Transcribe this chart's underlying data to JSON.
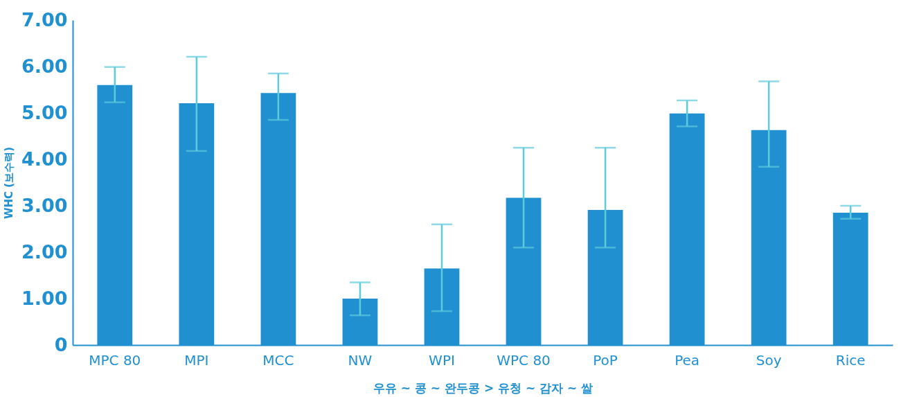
{
  "chart_data": {
    "type": "bar",
    "xlabel": "우유 ~ 콩 ~ 완두콩 > 유청 ~ 감자 ~ 쌀",
    "ylabel": "WHC (보수력)",
    "categories": [
      "MPC 80",
      "MPI",
      "MCC",
      "NW",
      "WPI",
      "WPC 80",
      "PoP",
      "Pea",
      "Soy",
      "Rice"
    ],
    "values": [
      5.6,
      5.21,
      5.43,
      1.0,
      1.65,
      3.17,
      2.91,
      4.99,
      4.63,
      2.85
    ],
    "errors": [
      [
        5.23,
        5.99
      ],
      [
        4.18,
        6.21
      ],
      [
        4.85,
        5.85
      ],
      [
        0.64,
        1.35
      ],
      [
        0.73,
        2.6
      ],
      [
        2.1,
        4.25
      ],
      [
        2.1,
        4.25
      ],
      [
        4.71,
        5.27
      ],
      [
        3.84,
        5.68
      ],
      [
        2.72,
        3.0
      ]
    ],
    "color": "#2190d0",
    "ylim": [
      0,
      7
    ],
    "yticks": [
      0,
      {
        "value": 1,
        "label": "1.00"
      },
      {
        "value": 2,
        "label": "2.00"
      },
      {
        "value": 3,
        "label": "3.00"
      },
      {
        "value": 4,
        "label": "4.00"
      },
      {
        "value": 5,
        "label": "5.00"
      },
      {
        "value": 6,
        "label": "6.00"
      },
      {
        "value": 7,
        "label": "7.00"
      }
    ],
    "grid": false
  }
}
